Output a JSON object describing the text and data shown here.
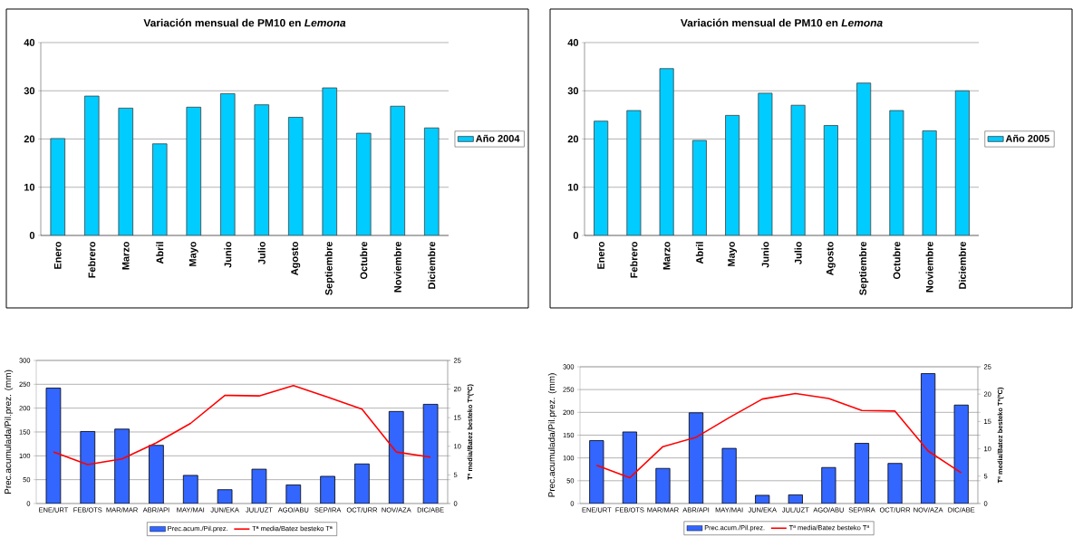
{
  "chart_data": [
    {
      "type": "bar",
      "title": "Variación mensual de PM10 en *Lemona*",
      "categories": [
        "Enero",
        "Febrero",
        "Marzo",
        "Abril",
        "Mayo",
        "Junio",
        "Julio",
        "Agosto",
        "Septiembre",
        "Octubre",
        "Noviembre",
        "Diciembre"
      ],
      "series": [
        {
          "name": "Año 2004",
          "color": "#00ccff",
          "values": [
            20.1,
            28.9,
            26.4,
            19.0,
            26.6,
            29.4,
            27.1,
            24.5,
            30.6,
            21.2,
            26.8,
            22.3
          ]
        }
      ],
      "ylim": [
        0,
        40
      ],
      "yticks": [
        0,
        10,
        20,
        30,
        40
      ],
      "grid": "y",
      "legend": "right"
    },
    {
      "type": "bar",
      "title": "Variación mensual de PM10 en *Lemona*",
      "categories": [
        "Enero",
        "Febrero",
        "Marzo",
        "Abril",
        "Mayo",
        "Junio",
        "Julio",
        "Agosto",
        "Septiembre",
        "Octubre",
        "Noviembre",
        "Diciembre"
      ],
      "series": [
        {
          "name": "Año 2005",
          "color": "#00ccff",
          "values": [
            23.7,
            25.9,
            34.6,
            19.7,
            24.9,
            29.5,
            27.0,
            22.8,
            31.6,
            25.9,
            21.7,
            30.0
          ]
        }
      ],
      "ylim": [
        0,
        40
      ],
      "yticks": [
        0,
        10,
        20,
        30,
        40
      ],
      "grid": "y",
      "legend": "right"
    },
    {
      "type": "bar",
      "ylabel": "Prec.acumulada/Pil.prez. (mm)",
      "y2label": "Tª media/Batez besteko Tª(ºC)",
      "categories": [
        "ENE/URT",
        "FEB/OTS",
        "MAR/MAR",
        "ABR/API",
        "MAY/MAI",
        "JUN/EKA",
        "JUL/UZT",
        "AGO/ABU",
        "SEP/IRA",
        "OCT/URR",
        "NOV/AZA",
        "DIC/ABE"
      ],
      "series": [
        {
          "name": "Prec.acum./Pil.prez.",
          "color": "#3366ff",
          "values": [
            242,
            151,
            156,
            122,
            59,
            29,
            72,
            39,
            57,
            83,
            193,
            208
          ]
        },
        {
          "name": "Tª media/Batez besteko Tª",
          "type": "line",
          "axis": "y2",
          "color": "#ff0000",
          "values": [
            9.0,
            6.8,
            7.8,
            10.6,
            14.0,
            18.9,
            18.8,
            20.6,
            18.6,
            16.5,
            9.0,
            8.1
          ]
        }
      ],
      "ylim": [
        0,
        300
      ],
      "yticks": [
        0,
        50,
        100,
        150,
        200,
        250,
        300
      ],
      "y2lim": [
        0,
        25
      ],
      "y2ticks": [
        0,
        5,
        10,
        15,
        20,
        25
      ],
      "grid": "y",
      "legend": "bottom"
    },
    {
      "type": "bar",
      "ylabel": "Prec.acumulada/Pil.prez. (mm)",
      "y2label": "Tª media/Batez besteko Tª(ºC)",
      "categories": [
        "ENE/URT",
        "FEB/OTS",
        "MAR/MAR",
        "ABR/API",
        "MAY/MAI",
        "JUN/EKA",
        "JUL/UZT",
        "AGO/ABU",
        "SEP/IRA",
        "OCT/URR",
        "NOV/AZA",
        "DIC/ABE"
      ],
      "series": [
        {
          "name": "Prec.acum./Pil.prez.",
          "color": "#3366ff",
          "values": [
            138,
            157,
            77,
            199,
            121,
            18,
            19,
            79,
            132,
            88,
            285,
            216
          ]
        },
        {
          "name": "Tª media/Batez besteko Tª",
          "type": "line",
          "axis": "y2",
          "color": "#ff0000",
          "values": [
            7.0,
            4.7,
            10.4,
            12.1,
            15.7,
            19.1,
            20.1,
            19.2,
            17.0,
            16.9,
            9.6,
            5.6
          ]
        }
      ],
      "ylim": [
        0,
        300
      ],
      "yticks": [
        0,
        50,
        100,
        150,
        200,
        250,
        300
      ],
      "y2lim": [
        0,
        25
      ],
      "y2ticks": [
        0,
        5,
        10,
        15,
        20,
        25
      ],
      "grid": "y",
      "legend": "bottom"
    }
  ]
}
